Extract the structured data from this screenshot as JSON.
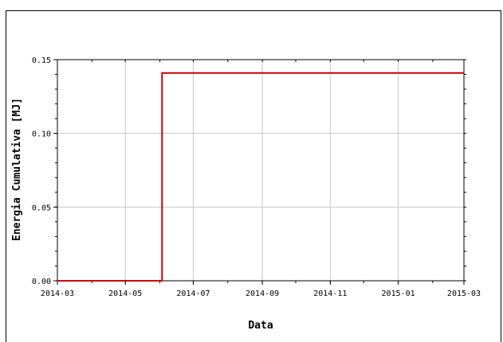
{
  "chart_data": {
    "type": "line",
    "title": "",
    "xlabel": "Data",
    "ylabel": "Energia Cumulativa [MJ]",
    "x_tick_labels": [
      "2014-03",
      "2014-05",
      "2014-07",
      "2014-09",
      "2014-11",
      "2015-01",
      "2015-03"
    ],
    "y_tick_labels": [
      "0.00",
      "0.05",
      "0.10",
      "0.15"
    ],
    "xlim": [
      "2014-03-01",
      "2015-03-01"
    ],
    "ylim": [
      0,
      0.15
    ],
    "grid": true,
    "line_style": "step",
    "series": [
      {
        "color": "#cc0000",
        "points": [
          {
            "x": "2014-03-01",
            "y": 0.0
          },
          {
            "x": "2014-06-03",
            "y": 0.0
          },
          {
            "x": "2014-06-03",
            "y": 0.141
          },
          {
            "x": "2015-03-01",
            "y": 0.141
          }
        ]
      }
    ]
  }
}
